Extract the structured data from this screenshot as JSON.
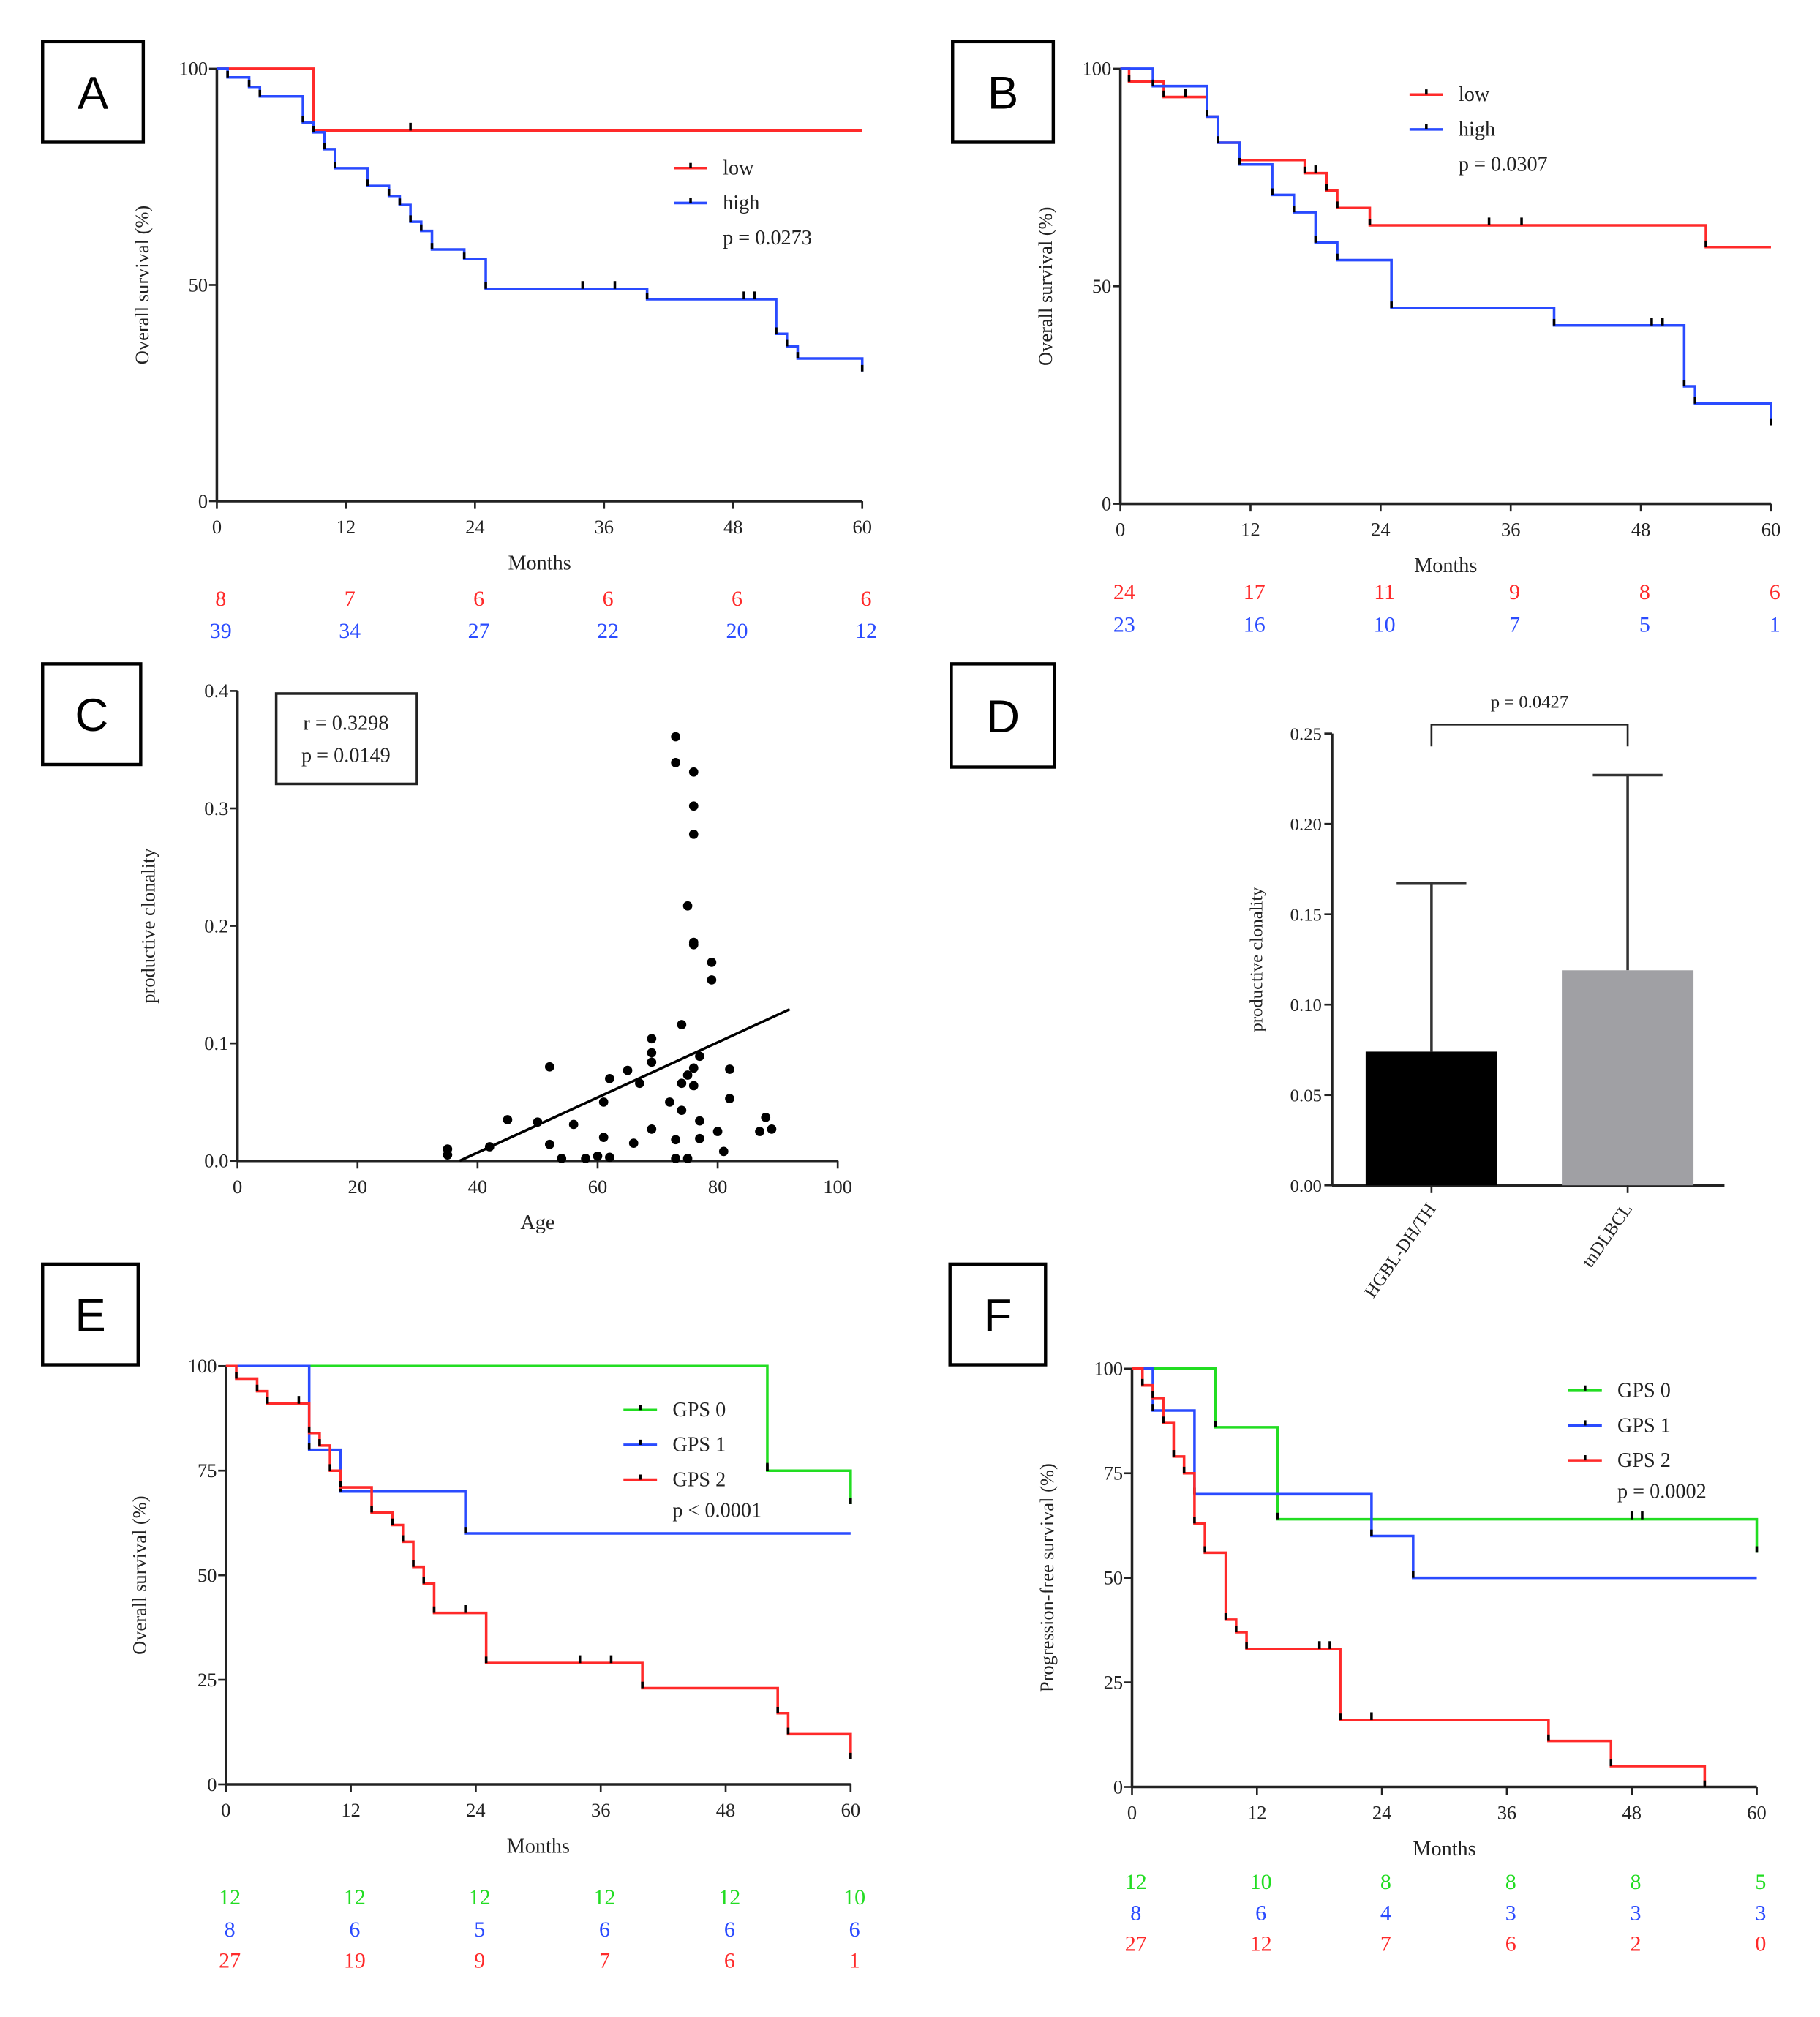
{
  "colors": {
    "red": "#ff2a2a",
    "blue": "#2a4bff",
    "green": "#22dd22",
    "black": "#000000",
    "grey": "#a0a0a4"
  },
  "chart_data": [
    {
      "panel": "A",
      "type": "line",
      "subtype": "kaplan-meier",
      "xlabel": "Months",
      "ylabel": "Overall survival (%)",
      "xticks": [
        0,
        12,
        24,
        36,
        48,
        60
      ],
      "yticks": [
        0,
        50,
        100
      ],
      "xlim": [
        0,
        60
      ],
      "ylim": [
        0,
        100
      ],
      "p_value": "p = 0.0273",
      "series": [
        {
          "name": "low",
          "color": "red",
          "steps": [
            [
              9,
              85.7
            ]
          ],
          "end": 60,
          "censors": [
            18
          ],
          "at_risk": [
            "8",
            "7",
            "6",
            "6",
            "6",
            "6"
          ]
        },
        {
          "name": "high",
          "color": "blue",
          "steps": [
            [
              1,
              98
            ],
            [
              3,
              95.8
            ],
            [
              4,
              93.6
            ],
            [
              8,
              87.6
            ],
            [
              9,
              85.3
            ],
            [
              10,
              81.4
            ],
            [
              11,
              77
            ],
            [
              14,
              72.9
            ],
            [
              16,
              70.6
            ],
            [
              17,
              68.5
            ],
            [
              18,
              64.6
            ],
            [
              19,
              62.5
            ],
            [
              20,
              58.2
            ],
            [
              23,
              56
            ],
            [
              25,
              49.1
            ],
            [
              40,
              46.7
            ],
            [
              52,
              38.7
            ],
            [
              53,
              35.8
            ],
            [
              54,
              33
            ],
            [
              60,
              30
            ]
          ],
          "end": 60,
          "censors": [
            34,
            37,
            49,
            50
          ],
          "at_risk": [
            "39",
            "34",
            "27",
            "22",
            "20",
            "12"
          ]
        }
      ]
    },
    {
      "panel": "B",
      "type": "line",
      "subtype": "kaplan-meier",
      "xlabel": "Months",
      "ylabel": "Overall survival (%)",
      "xticks": [
        0,
        12,
        24,
        36,
        48,
        60
      ],
      "yticks": [
        0,
        50,
        100
      ],
      "xlim": [
        0,
        60
      ],
      "ylim": [
        0,
        100
      ],
      "p_value": "p = 0.0307",
      "series": [
        {
          "name": "low",
          "color": "red",
          "steps": [
            [
              0.8,
              97
            ],
            [
              4,
              93.5
            ],
            [
              8,
              89
            ],
            [
              9,
              83
            ],
            [
              11,
              79
            ],
            [
              17,
              76
            ],
            [
              19,
              72
            ],
            [
              20,
              68
            ],
            [
              23,
              64
            ],
            [
              54,
              59
            ]
          ],
          "end": 60,
          "censors": [
            6,
            18,
            34,
            37
          ],
          "at_risk": [
            "24",
            "17",
            "11",
            "9",
            "8",
            "6"
          ]
        },
        {
          "name": "high",
          "color": "blue",
          "steps": [
            [
              3,
              96
            ],
            [
              8,
              89
            ],
            [
              9,
              83
            ],
            [
              11,
              78
            ],
            [
              14,
              71
            ],
            [
              16,
              67
            ],
            [
              18,
              60
            ],
            [
              20,
              56
            ],
            [
              25,
              45
            ],
            [
              40,
              41
            ],
            [
              52,
              27
            ],
            [
              53,
              23
            ],
            [
              60,
              18
            ]
          ],
          "end": 60,
          "censors": [
            49,
            50
          ],
          "at_risk": [
            "23",
            "16",
            "10",
            "7",
            "5",
            "1"
          ]
        }
      ]
    },
    {
      "panel": "C",
      "type": "scatter",
      "xlabel": "Age",
      "ylabel": "productive clonality",
      "xticks": [
        0,
        20,
        40,
        60,
        80,
        100
      ],
      "yticks": [
        0.0,
        0.1,
        0.2,
        0.3,
        0.4
      ],
      "xlim": [
        0,
        100
      ],
      "ylim": [
        0,
        0.4
      ],
      "stats": [
        "r = 0.3298",
        "p = 0.0149"
      ],
      "regression": [
        [
          37,
          0
        ],
        [
          92,
          0.129
        ]
      ],
      "points": [
        [
          73,
          0.361
        ],
        [
          73,
          0.339
        ],
        [
          76,
          0.331
        ],
        [
          76,
          0.302
        ],
        [
          76,
          0.278
        ],
        [
          75,
          0.217
        ],
        [
          76,
          0.186
        ],
        [
          76,
          0.184
        ],
        [
          79,
          0.169
        ],
        [
          79,
          0.154
        ],
        [
          74,
          0.116
        ],
        [
          69,
          0.104
        ],
        [
          69,
          0.092
        ],
        [
          69,
          0.084
        ],
        [
          77,
          0.089
        ],
        [
          82,
          0.078
        ],
        [
          76,
          0.079
        ],
        [
          75,
          0.073
        ],
        [
          74,
          0.066
        ],
        [
          76,
          0.064
        ],
        [
          65,
          0.077
        ],
        [
          67,
          0.066
        ],
        [
          62,
          0.07
        ],
        [
          52,
          0.08
        ],
        [
          61,
          0.05
        ],
        [
          72,
          0.05
        ],
        [
          74,
          0.043
        ],
        [
          82,
          0.053
        ],
        [
          45,
          0.035
        ],
        [
          50,
          0.033
        ],
        [
          56,
          0.031
        ],
        [
          77,
          0.034
        ],
        [
          69,
          0.027
        ],
        [
          80,
          0.025
        ],
        [
          88,
          0.037
        ],
        [
          87,
          0.025
        ],
        [
          89,
          0.027
        ],
        [
          61,
          0.02
        ],
        [
          73,
          0.018
        ],
        [
          77,
          0.019
        ],
        [
          66,
          0.015
        ],
        [
          52,
          0.014
        ],
        [
          42,
          0.012
        ],
        [
          81,
          0.008
        ],
        [
          35,
          0.01
        ],
        [
          35,
          0.005
        ],
        [
          54,
          0.002
        ],
        [
          58,
          0.002
        ],
        [
          60,
          0.004
        ],
        [
          62,
          0.003
        ],
        [
          73,
          0.002
        ],
        [
          75,
          0.002
        ]
      ]
    },
    {
      "panel": "D",
      "type": "bar",
      "ylabel": "productive clonality",
      "categories": [
        "HGBL-DH/TH",
        "tnDLBCL"
      ],
      "values": [
        0.074,
        0.119
      ],
      "error_upper": [
        0.167,
        0.227
      ],
      "bar_colors": [
        "black",
        "grey"
      ],
      "yticks": [
        "0.00",
        "0.05",
        "0.10",
        "0.15",
        "0.20",
        "0.25"
      ],
      "ylim": [
        0,
        0.25
      ],
      "p_value": "p = 0.0427"
    },
    {
      "panel": "E",
      "type": "line",
      "subtype": "kaplan-meier",
      "xlabel": "Months",
      "ylabel": "Overall survival (%)",
      "xticks": [
        0,
        12,
        24,
        36,
        48,
        60
      ],
      "yticks": [
        0,
        25,
        50,
        75,
        100
      ],
      "xlim": [
        0,
        60
      ],
      "ylim": [
        0,
        100
      ],
      "p_value": "p < 0.0001",
      "series": [
        {
          "name": "GPS 0",
          "color": "green",
          "steps": [
            [
              52,
              75
            ],
            [
              60,
              67
            ]
          ],
          "end": 60,
          "censors": [
            52
          ],
          "at_risk": [
            "12",
            "12",
            "12",
            "12",
            "12",
            "10"
          ]
        },
        {
          "name": "GPS 1",
          "color": "blue",
          "steps": [
            [
              8,
              80
            ],
            [
              11,
              70
            ],
            [
              23,
              60
            ]
          ],
          "end": 60,
          "censors": [],
          "at_risk": [
            "8",
            "6",
            "5",
            "6",
            "6",
            "6"
          ]
        },
        {
          "name": "GPS 2",
          "color": "red",
          "steps": [
            [
              1,
              97
            ],
            [
              3,
              94
            ],
            [
              4,
              91
            ],
            [
              8,
              84
            ],
            [
              9,
              81
            ],
            [
              10,
              75
            ],
            [
              11,
              71
            ],
            [
              14,
              65
            ],
            [
              16,
              62
            ],
            [
              17,
              58
            ],
            [
              18,
              52
            ],
            [
              19,
              48
            ],
            [
              20,
              41
            ],
            [
              25,
              29
            ],
            [
              40,
              23
            ],
            [
              53,
              17
            ],
            [
              54,
              12
            ],
            [
              60,
              6
            ]
          ],
          "end": 60,
          "censors": [
            7,
            23,
            34,
            37
          ],
          "at_risk": [
            "27",
            "19",
            "9",
            "7",
            "6",
            "1"
          ]
        }
      ]
    },
    {
      "panel": "F",
      "type": "line",
      "subtype": "kaplan-meier",
      "xlabel": "Months",
      "ylabel": "Progression-free survival (%)",
      "xticks": [
        0,
        12,
        24,
        36,
        48,
        60
      ],
      "yticks": [
        0,
        25,
        50,
        75,
        100
      ],
      "xlim": [
        0,
        60
      ],
      "ylim": [
        0,
        100
      ],
      "p_value": "p = 0.0002",
      "series": [
        {
          "name": "GPS 0",
          "color": "green",
          "steps": [
            [
              8,
              86
            ],
            [
              14,
              64
            ],
            [
              60,
              56
            ]
          ],
          "end": 60,
          "censors": [
            48,
            49
          ],
          "at_risk": [
            "12",
            "10",
            "8",
            "8",
            "8",
            "5"
          ]
        },
        {
          "name": "GPS 1",
          "color": "blue",
          "steps": [
            [
              2,
              90
            ],
            [
              6,
              70
            ],
            [
              23,
              60
            ],
            [
              27,
              50
            ]
          ],
          "end": 60,
          "censors": [],
          "at_risk": [
            "8",
            "6",
            "4",
            "3",
            "3",
            "3"
          ]
        },
        {
          "name": "GPS 2",
          "color": "red",
          "steps": [
            [
              1,
              96
            ],
            [
              2,
              93
            ],
            [
              3,
              87
            ],
            [
              4,
              79
            ],
            [
              5,
              75
            ],
            [
              6,
              63
            ],
            [
              7,
              56
            ],
            [
              9,
              40
            ],
            [
              10,
              37
            ],
            [
              11,
              33
            ],
            [
              20,
              16
            ],
            [
              40,
              11
            ],
            [
              46,
              5
            ],
            [
              55,
              0
            ]
          ],
          "end": 55,
          "censors": [
            18,
            19,
            23
          ],
          "at_risk": [
            "27",
            "12",
            "7",
            "6",
            "2",
            "0"
          ]
        }
      ]
    }
  ]
}
